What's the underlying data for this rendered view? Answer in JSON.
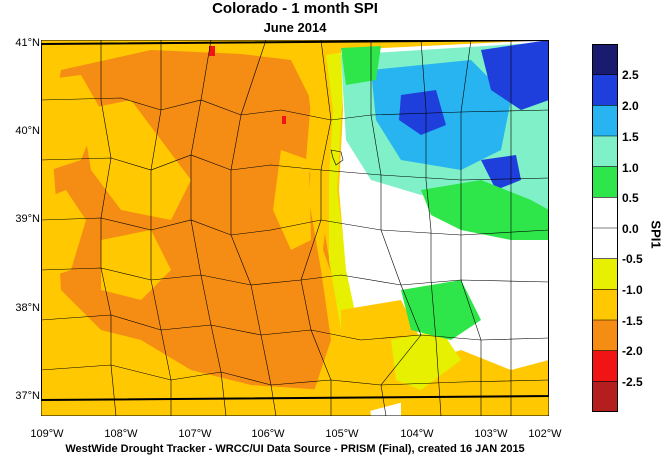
{
  "header": {
    "title": "Colorado - 1 month SPI",
    "subtitle": "June 2014"
  },
  "footer": {
    "credit": "WestWide Drought Tracker - WRCC/UI  Data Source - PRISM (Final), created 16 JAN 2015"
  },
  "axes": {
    "lat_labels": [
      "41°N",
      "40°N",
      "39°N",
      "38°N",
      "37°N"
    ],
    "lon_labels": [
      "109°W",
      "108°W",
      "107°W",
      "106°W",
      "105°W",
      "104°W",
      "103°W",
      "102°W"
    ]
  },
  "legend": {
    "title": "SPI1",
    "labels": [
      "2.5",
      "2.0",
      "1.5",
      "1.0",
      "0.5",
      "0.0",
      "-0.5",
      "-1.0",
      "-1.5",
      "-2.0",
      "-2.5"
    ],
    "colors": [
      "#1a1a6e",
      "#1f3fdc",
      "#27b4f0",
      "#7ff0c8",
      "#2ee64a",
      "#ffffff",
      "#ffffff",
      "#e6f000",
      "#ffc800",
      "#f58c14",
      "#f01414",
      "#b41e1e"
    ]
  }
}
